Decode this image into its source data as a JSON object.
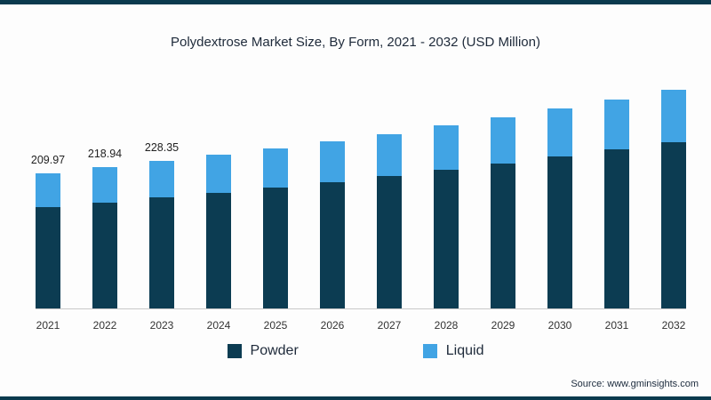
{
  "title": "Polydextrose Market Size, By Form, 2021 - 2032 (USD Million)",
  "source": "Source: www.gminsights.com",
  "legend": [
    {
      "label": "Powder",
      "color": "#0c3c52"
    },
    {
      "label": "Liquid",
      "color": "#41a4e4"
    }
  ],
  "colors": {
    "border": "#0b3a4e",
    "powder": "#0c3c52",
    "liquid": "#41a4e4",
    "axis_line": "#c9c9c9"
  },
  "chart_data": {
    "type": "bar",
    "stacked": true,
    "title": "Polydextrose Market Size, By Form, 2021 - 2032 (USD Million)",
    "xlabel": "",
    "ylabel": "",
    "categories": [
      "2021",
      "2022",
      "2023",
      "2024",
      "2025",
      "2026",
      "2027",
      "2028",
      "2029",
      "2030",
      "2031",
      "2032"
    ],
    "series": [
      {
        "name": "Powder",
        "color": "#0c3c52",
        "values": [
          157.5,
          164.5,
          172.0,
          180.0,
          188.0,
          196.5,
          205.5,
          215.0,
          225.0,
          235.5,
          246.5,
          258.0
        ]
      },
      {
        "name": "Liquid",
        "color": "#41a4e4",
        "values": [
          52.47,
          54.44,
          56.35,
          58.0,
          60.5,
          63.0,
          65.5,
          68.5,
          71.5,
          74.5,
          78.0,
          81.5
        ]
      }
    ],
    "totals": [
      209.97,
      218.94,
      228.35,
      238.0,
      248.5,
      259.5,
      271.0,
      283.5,
      296.5,
      310.0,
      324.5,
      339.5
    ],
    "data_labels": [
      "209.97",
      "218.94",
      "228.35",
      "",
      "",
      "",
      "",
      "",
      "",
      "",
      "",
      ""
    ],
    "ylim": [
      0,
      360
    ],
    "grid": false,
    "legend_position": "bottom"
  }
}
